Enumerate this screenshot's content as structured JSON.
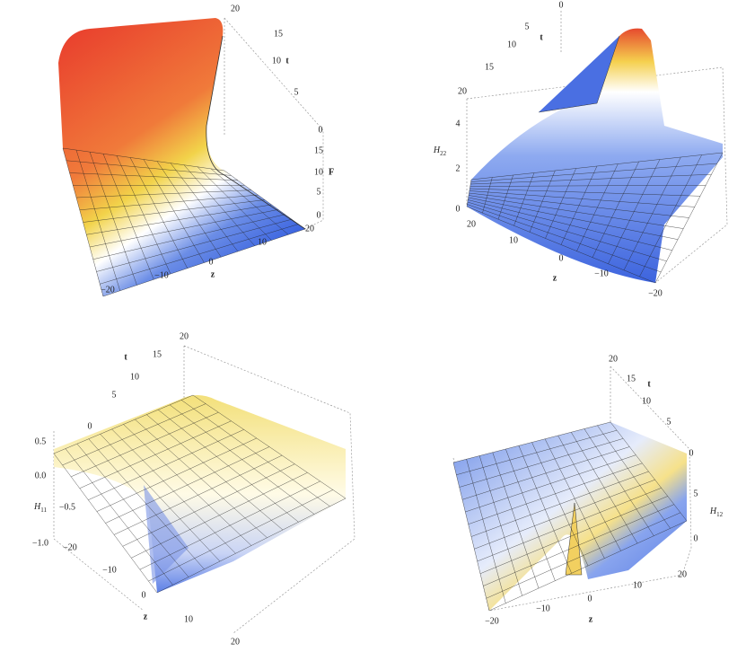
{
  "panels": [
    {
      "t_ticks": [
        "20",
        "15",
        "10",
        "5",
        "0"
      ],
      "t_label": "t",
      "v_ticks": [
        "15",
        "10",
        "5",
        "0"
      ],
      "v_label": "F",
      "z_ticks": [
        "−20",
        "−10",
        "0",
        "10",
        "20"
      ],
      "z_label": "z"
    },
    {
      "t_ticks": [
        "0",
        "5",
        "10",
        "15",
        "20"
      ],
      "t_label": "t",
      "v_ticks": [
        "4",
        "2",
        "0"
      ],
      "v_label": {
        "main": "H",
        "sub": "22"
      },
      "z_ticks": [
        "20",
        "10",
        "0",
        "−10",
        "−20"
      ],
      "z_label": "z"
    },
    {
      "t_ticks": [
        "20",
        "15",
        "10",
        "5",
        "0"
      ],
      "t_label": "t",
      "v_ticks": [
        "0.5",
        "0.0",
        "−0.5",
        "−1.0"
      ],
      "v_label": {
        "main": "H",
        "sub": "11"
      },
      "z_ticks": [
        "−20",
        "−10",
        "0",
        "10",
        "20"
      ],
      "z_label": "z"
    },
    {
      "t_ticks": [
        "20",
        "15",
        "10",
        "5",
        "0"
      ],
      "t_label": "t",
      "v_ticks": [
        "5",
        "0"
      ],
      "v_label": {
        "main": "H",
        "sub": "12"
      },
      "z_ticks": [
        "−20",
        "−10",
        "0",
        "10",
        "20"
      ],
      "z_label": "z"
    }
  ]
}
